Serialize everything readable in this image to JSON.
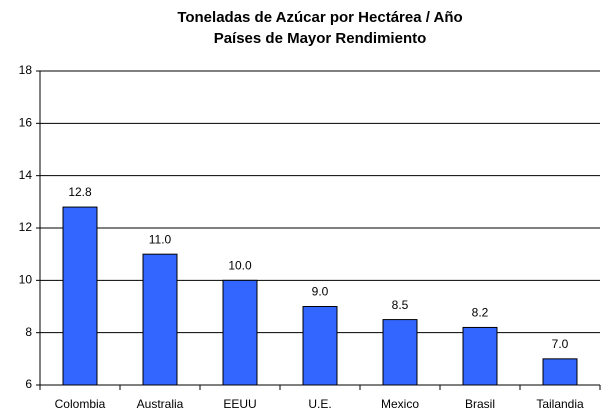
{
  "chart_data": {
    "type": "bar",
    "title": "Toneladas de Azúcar por Hectárea / Año",
    "subtitle": "Países de Mayor Rendimiento",
    "categories": [
      "Colombia",
      "Australia",
      "EEUU",
      "U.E.",
      "Mexico",
      "Brasil",
      "Tailandia"
    ],
    "values": [
      12.8,
      11,
      10,
      9,
      8.5,
      8.2,
      7
    ],
    "value_labels": [
      "12.8",
      "11.0",
      "10.0",
      "9.0",
      "8.5",
      "8.2",
      "7.0"
    ],
    "color": "#3366ff",
    "ylim": [
      6,
      18
    ],
    "yticks": [
      6,
      8,
      10,
      12,
      14,
      16,
      18
    ],
    "grid": true
  }
}
